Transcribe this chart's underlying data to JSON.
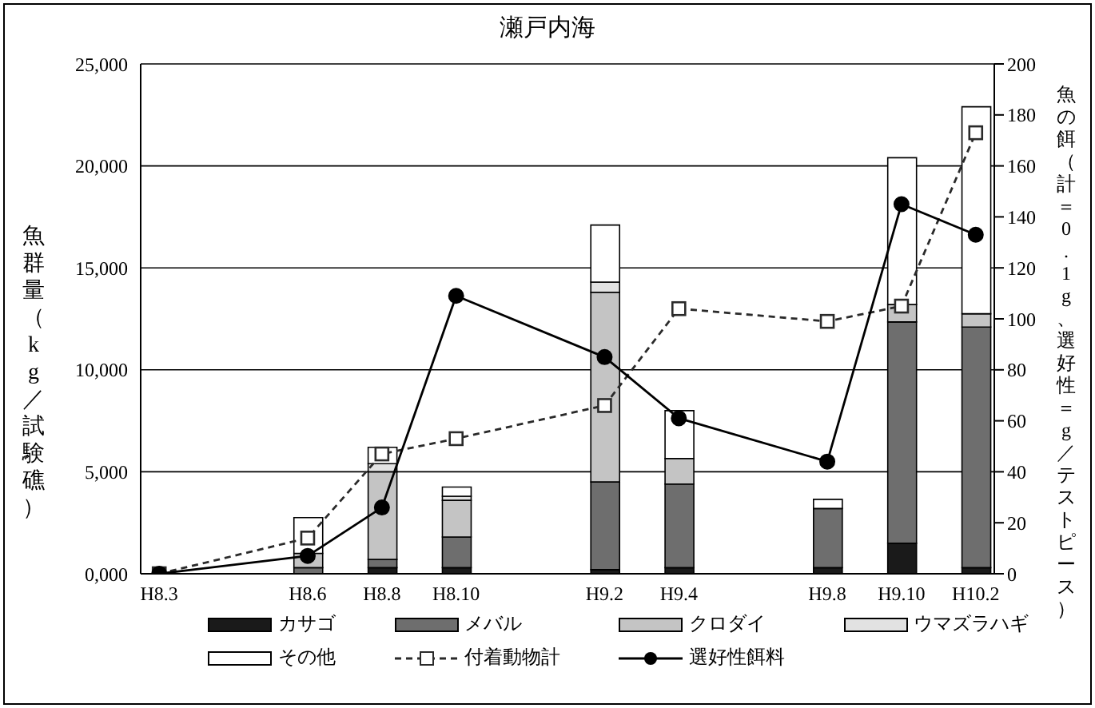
{
  "chart_data": {
    "type": "bar",
    "title": "瀬戸内海",
    "ylabel": "魚群量（kg／試験礁）",
    "y2label": "魚の餌（計＝0.1g、選好性＝g／テストピース）",
    "categories": [
      "H8.3",
      null,
      null,
      null,
      "H8.6",
      null,
      "H8.8",
      null,
      "H8.10",
      null,
      null,
      null,
      "H9.2",
      null,
      "H9.4",
      null,
      null,
      null,
      "H9.8",
      null,
      "H9.10",
      null,
      "H10.2"
    ],
    "stacked": true,
    "ylim": [
      0,
      25000
    ],
    "yticks": [
      {
        "value": 0,
        "label": "0,000"
      },
      {
        "value": 5000,
        "label": "5,000"
      },
      {
        "value": 10000,
        "label": "10,000"
      },
      {
        "value": 15000,
        "label": "15,000"
      },
      {
        "value": 20000,
        "label": "20,000"
      },
      {
        "value": 25000,
        "label": "25,000"
      }
    ],
    "y2lim": [
      0,
      200
    ],
    "y2ticks": [
      0,
      20,
      40,
      60,
      80,
      100,
      120,
      140,
      160,
      180,
      200
    ],
    "grid": "y",
    "legend": "bottom",
    "series": [
      {
        "name": "カサゴ",
        "color": "#1a1a1a",
        "values": [
          0,
          null,
          null,
          null,
          0,
          null,
          300,
          null,
          300,
          null,
          null,
          null,
          200,
          null,
          300,
          null,
          null,
          null,
          300,
          null,
          1500,
          null,
          300
        ]
      },
      {
        "name": "メバル",
        "color": "#6e6e6e",
        "values": [
          0,
          null,
          null,
          null,
          300,
          null,
          400,
          null,
          1500,
          null,
          null,
          null,
          4300,
          null,
          4100,
          null,
          null,
          null,
          2900,
          null,
          10850,
          null,
          11800
        ]
      },
      {
        "name": "クロダイ",
        "color": "#c4c4c4",
        "values": [
          0,
          null,
          null,
          null,
          700,
          null,
          4300,
          null,
          1800,
          null,
          null,
          null,
          9300,
          null,
          1250,
          null,
          null,
          null,
          0,
          null,
          850,
          null,
          650
        ]
      },
      {
        "name": "ウマズラハギ",
        "color": "#e2e2e2",
        "values": [
          0,
          null,
          null,
          null,
          null,
          null,
          400,
          null,
          200,
          null,
          null,
          null,
          500,
          null,
          0,
          null,
          null,
          null,
          0,
          null,
          0,
          null,
          0
        ]
      },
      {
        "name": "その他",
        "color": "#ffffff",
        "values": [
          0,
          null,
          null,
          null,
          1750,
          null,
          800,
          null,
          450,
          null,
          null,
          null,
          2800,
          null,
          2350,
          null,
          null,
          null,
          450,
          null,
          7200,
          null,
          10150
        ]
      },
      {
        "name": "付着動物計",
        "type": "line",
        "axis": "y2",
        "color": "#2a2a2a",
        "marker": "square",
        "line_style": "dashed",
        "values": [
          0,
          null,
          null,
          null,
          14,
          null,
          47,
          null,
          53,
          null,
          null,
          null,
          66,
          null,
          104,
          null,
          null,
          null,
          99,
          null,
          105,
          null,
          173
        ]
      },
      {
        "name": "選好性餌料",
        "type": "line",
        "axis": "y2",
        "color": "#000000",
        "marker": "circle",
        "line_style": "solid",
        "values": [
          0,
          null,
          null,
          null,
          7,
          null,
          26,
          null,
          109,
          null,
          null,
          null,
          85,
          null,
          61,
          null,
          null,
          null,
          44,
          null,
          145,
          null,
          133
        ]
      }
    ]
  }
}
